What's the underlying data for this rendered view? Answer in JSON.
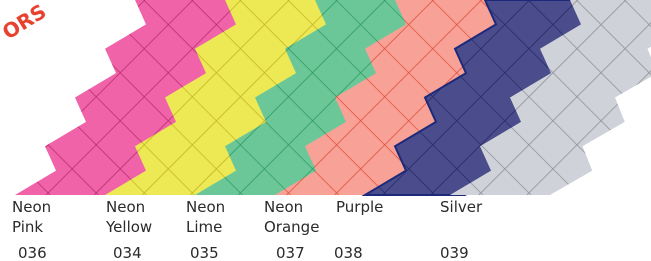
{
  "badge": "ORS",
  "swatches": [
    {
      "name": [
        "Neon",
        "Pink"
      ],
      "code": "036",
      "color": "#f063a8",
      "line": "#b72d6c"
    },
    {
      "name": [
        "Neon",
        "Yellow"
      ],
      "code": "034",
      "color": "#ece955",
      "line": "#c4b622"
    },
    {
      "name": [
        "Neon",
        "Lime"
      ],
      "code": "035",
      "color": "#6cc798",
      "line": "#2f9a62"
    },
    {
      "name": [
        "Neon",
        "Orange"
      ],
      "code": "037",
      "color": "#f8a196",
      "line": "#e0513e"
    },
    {
      "name": [
        "Purple"
      ],
      "code": "038",
      "color": "#4a4c8c",
      "line": "#262a66"
    },
    {
      "name": [
        "Silver"
      ],
      "code": "039",
      "color": "#cfd2d8",
      "line": "#8e9196"
    }
  ]
}
